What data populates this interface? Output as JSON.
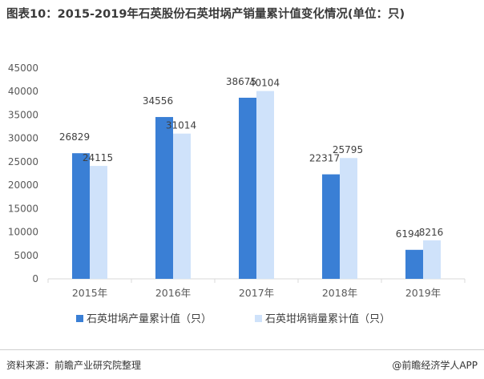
{
  "title": "图表10：2015-2019年石英股份石英坩埚产销量累计值变化情况(单位：只)",
  "source": "资料来源：前瞻产业研究院整理",
  "brand": "前瞻经济学人APP",
  "brand_symbol": "@",
  "colors": {
    "production": "#3a7fd5",
    "sales": "#cfe2fa",
    "axis_text": "#595959",
    "grid": "#d9d9d9"
  },
  "chart_data": {
    "type": "bar",
    "categories": [
      "2015年",
      "2016年",
      "2017年",
      "2018年",
      "2019年"
    ],
    "series": [
      {
        "name": "石英坩埚产量累计值（只）",
        "values": [
          26829,
          34556,
          38675,
          22317,
          6194
        ]
      },
      {
        "name": "石英坩埚销量累计值（只）",
        "values": [
          24115,
          31014,
          40104,
          25795,
          8216
        ]
      }
    ],
    "ylim": [
      0,
      45000
    ],
    "yticks": [
      0,
      5000,
      10000,
      15000,
      20000,
      25000,
      30000,
      35000,
      40000,
      45000
    ],
    "legend": "bottom",
    "grid": false,
    "data_labels": true
  }
}
